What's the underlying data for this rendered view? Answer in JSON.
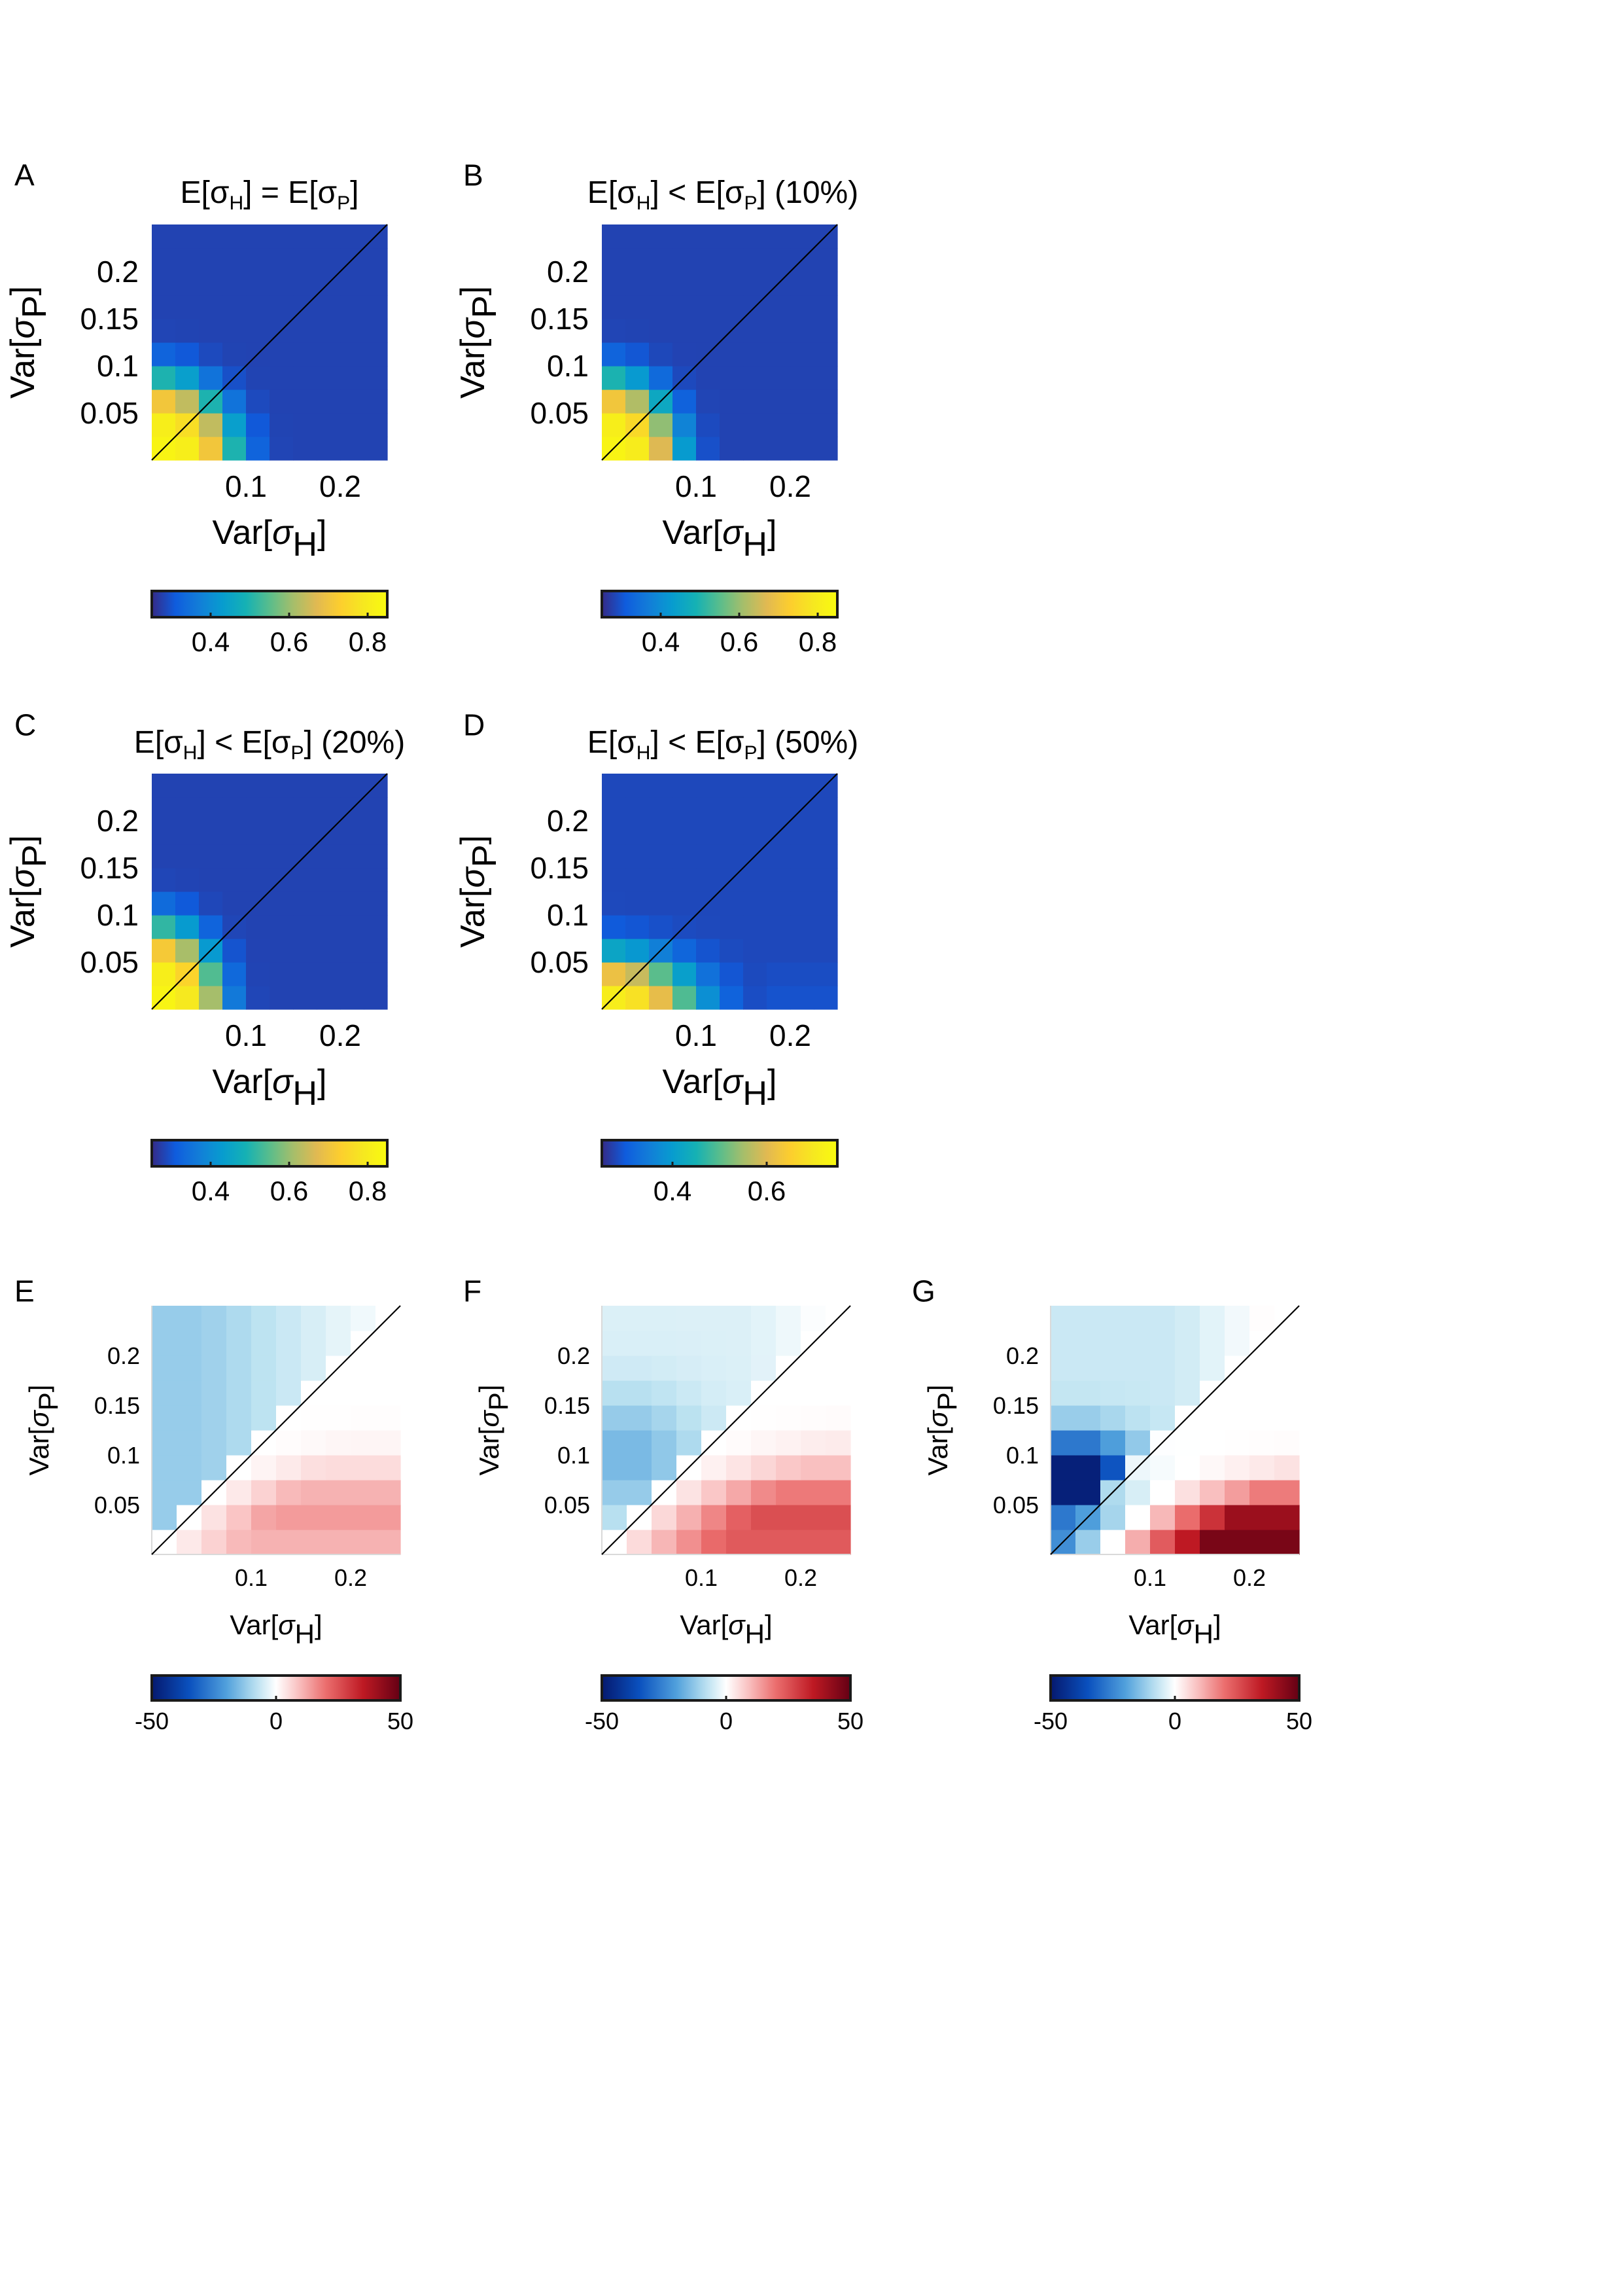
{
  "chart_data": [
    {
      "id": "A",
      "type": "heatmap",
      "panel_label": "A",
      "title": {
        "pre": "E[σ",
        "sub1": "H",
        "mid": "] = E[σ",
        "sub2": "P",
        "post": "]"
      },
      "xlabel": {
        "pre": "Var[",
        "sym": "σ",
        "sub": "H",
        "post": "]"
      },
      "ylabel": {
        "pre": "Var[",
        "sym": "σ",
        "sub": "P",
        "post": "]"
      },
      "x_ticks": [
        {
          "v": 0.1,
          "label": "0.1"
        },
        {
          "v": 0.2,
          "label": "0.2"
        }
      ],
      "y_ticks": [
        {
          "v": 0.05,
          "label": "0.05"
        },
        {
          "v": 0.1,
          "label": "0.1"
        },
        {
          "v": 0.15,
          "label": "0.15"
        },
        {
          "v": 0.2,
          "label": "0.2"
        }
      ],
      "xlim": [
        0,
        0.25
      ],
      "ylim": [
        0,
        0.25
      ],
      "grid_n": 10,
      "colormap": "parula",
      "clim": [
        0.25,
        0.85
      ],
      "colorbar_ticks": [
        {
          "v": 0.4,
          "label": "0.4"
        },
        {
          "v": 0.6,
          "label": "0.6"
        },
        {
          "v": 0.8,
          "label": "0.8"
        }
      ],
      "diagonal": true
    },
    {
      "id": "B",
      "type": "heatmap",
      "panel_label": "B",
      "title": {
        "pre": "E[σ",
        "sub1": "H",
        "mid": "] < E[σ",
        "sub2": "P",
        "post": "] (10%)"
      },
      "xlabel": {
        "pre": "Var[",
        "sym": "σ",
        "sub": "H",
        "post": "]"
      },
      "ylabel": {
        "pre": "Var[",
        "sym": "σ",
        "sub": "P",
        "post": "]"
      },
      "x_ticks": [
        {
          "v": 0.1,
          "label": "0.1"
        },
        {
          "v": 0.2,
          "label": "0.2"
        }
      ],
      "y_ticks": [
        {
          "v": 0.05,
          "label": "0.05"
        },
        {
          "v": 0.1,
          "label": "0.1"
        },
        {
          "v": 0.15,
          "label": "0.15"
        },
        {
          "v": 0.2,
          "label": "0.2"
        }
      ],
      "xlim": [
        0,
        0.25
      ],
      "ylim": [
        0,
        0.25
      ],
      "grid_n": 10,
      "colormap": "parula",
      "clim": [
        0.25,
        0.85
      ],
      "colorbar_ticks": [
        {
          "v": 0.4,
          "label": "0.4"
        },
        {
          "v": 0.6,
          "label": "0.6"
        },
        {
          "v": 0.8,
          "label": "0.8"
        }
      ],
      "diagonal": true
    },
    {
      "id": "C",
      "type": "heatmap",
      "panel_label": "C",
      "title": {
        "pre": "E[σ",
        "sub1": "H",
        "mid": "] < E[σ",
        "sub2": "P",
        "post": "] (20%)"
      },
      "xlabel": {
        "pre": "Var[",
        "sym": "σ",
        "sub": "H",
        "post": "]"
      },
      "ylabel": {
        "pre": "Var[",
        "sym": "σ",
        "sub": "P",
        "post": "]"
      },
      "x_ticks": [
        {
          "v": 0.1,
          "label": "0.1"
        },
        {
          "v": 0.2,
          "label": "0.2"
        }
      ],
      "y_ticks": [
        {
          "v": 0.05,
          "label": "0.05"
        },
        {
          "v": 0.1,
          "label": "0.1"
        },
        {
          "v": 0.15,
          "label": "0.15"
        },
        {
          "v": 0.2,
          "label": "0.2"
        }
      ],
      "xlim": [
        0,
        0.25
      ],
      "ylim": [
        0,
        0.25
      ],
      "grid_n": 10,
      "colormap": "parula",
      "clim": [
        0.25,
        0.85
      ],
      "colorbar_ticks": [
        {
          "v": 0.4,
          "label": "0.4"
        },
        {
          "v": 0.6,
          "label": "0.6"
        },
        {
          "v": 0.8,
          "label": "0.8"
        }
      ],
      "diagonal": true
    },
    {
      "id": "D",
      "type": "heatmap",
      "panel_label": "D",
      "title": {
        "pre": "E[σ",
        "sub1": "H",
        "mid": "] < E[σ",
        "sub2": "P",
        "post": "] (50%)"
      },
      "xlabel": {
        "pre": "Var[",
        "sym": "σ",
        "sub": "H",
        "post": "]"
      },
      "ylabel": {
        "pre": "Var[",
        "sym": "σ",
        "sub": "P",
        "post": "]"
      },
      "x_ticks": [
        {
          "v": 0.1,
          "label": "0.1"
        },
        {
          "v": 0.2,
          "label": "0.2"
        }
      ],
      "y_ticks": [
        {
          "v": 0.05,
          "label": "0.05"
        },
        {
          "v": 0.1,
          "label": "0.1"
        },
        {
          "v": 0.15,
          "label": "0.15"
        },
        {
          "v": 0.2,
          "label": "0.2"
        }
      ],
      "xlim": [
        0,
        0.25
      ],
      "ylim": [
        0,
        0.25
      ],
      "grid_n": 10,
      "colormap": "parula",
      "clim": [
        0.25,
        0.75
      ],
      "colorbar_ticks": [
        {
          "v": 0.4,
          "label": "0.4"
        },
        {
          "v": 0.6,
          "label": "0.6"
        }
      ],
      "diagonal": true
    },
    {
      "id": "E",
      "type": "heatmap",
      "panel_label": "E",
      "title": null,
      "xlabel": {
        "pre": "Var[",
        "sym": "σ",
        "sub": "H",
        "post": "]"
      },
      "ylabel": {
        "pre": "Var[",
        "sym": "σ",
        "sub": "P",
        "post": "]"
      },
      "x_ticks": [
        {
          "v": 0.1,
          "label": "0.1"
        },
        {
          "v": 0.2,
          "label": "0.2"
        }
      ],
      "y_ticks": [
        {
          "v": 0.05,
          "label": "0.05"
        },
        {
          "v": 0.1,
          "label": "0.1"
        },
        {
          "v": 0.15,
          "label": "0.15"
        },
        {
          "v": 0.2,
          "label": "0.2"
        }
      ],
      "xlim": [
        0,
        0.25
      ],
      "ylim": [
        0,
        0.25
      ],
      "grid_n": 10,
      "colormap": "diverging",
      "clim": [
        -50,
        50
      ],
      "colorbar_ticks": [
        {
          "v": -50,
          "label": "-50"
        },
        {
          "v": 0,
          "label": "0"
        },
        {
          "v": 50,
          "label": "50"
        }
      ],
      "diagonal": true
    },
    {
      "id": "F",
      "type": "heatmap",
      "panel_label": "F",
      "title": null,
      "xlabel": {
        "pre": "Var[",
        "sym": "σ",
        "sub": "H",
        "post": "]"
      },
      "ylabel": {
        "pre": "Var[",
        "sym": "σ",
        "sub": "P",
        "post": "]"
      },
      "x_ticks": [
        {
          "v": 0.1,
          "label": "0.1"
        },
        {
          "v": 0.2,
          "label": "0.2"
        }
      ],
      "y_ticks": [
        {
          "v": 0.05,
          "label": "0.05"
        },
        {
          "v": 0.1,
          "label": "0.1"
        },
        {
          "v": 0.15,
          "label": "0.15"
        },
        {
          "v": 0.2,
          "label": "0.2"
        }
      ],
      "xlim": [
        0,
        0.25
      ],
      "ylim": [
        0,
        0.25
      ],
      "grid_n": 10,
      "colormap": "diverging",
      "clim": [
        -50,
        50
      ],
      "colorbar_ticks": [
        {
          "v": -50,
          "label": "-50"
        },
        {
          "v": 0,
          "label": "0"
        },
        {
          "v": 50,
          "label": "50"
        }
      ],
      "diagonal": true
    },
    {
      "id": "G",
      "type": "heatmap",
      "panel_label": "G",
      "title": null,
      "xlabel": {
        "pre": "Var[",
        "sym": "σ",
        "sub": "H",
        "post": "]"
      },
      "ylabel": {
        "pre": "Var[",
        "sym": "σ",
        "sub": "P",
        "post": "]"
      },
      "x_ticks": [
        {
          "v": 0.1,
          "label": "0.1"
        },
        {
          "v": 0.2,
          "label": "0.2"
        }
      ],
      "y_ticks": [
        {
          "v": 0.05,
          "label": "0.05"
        },
        {
          "v": 0.1,
          "label": "0.1"
        },
        {
          "v": 0.15,
          "label": "0.15"
        },
        {
          "v": 0.2,
          "label": "0.2"
        }
      ],
      "xlim": [
        0,
        0.25
      ],
      "ylim": [
        0,
        0.25
      ],
      "grid_n": 10,
      "colormap": "diverging",
      "clim": [
        -50,
        50
      ],
      "colorbar_ticks": [
        {
          "v": -50,
          "label": "-50"
        },
        {
          "v": 0,
          "label": "0"
        },
        {
          "v": 50,
          "label": "50"
        }
      ],
      "diagonal": true
    }
  ]
}
